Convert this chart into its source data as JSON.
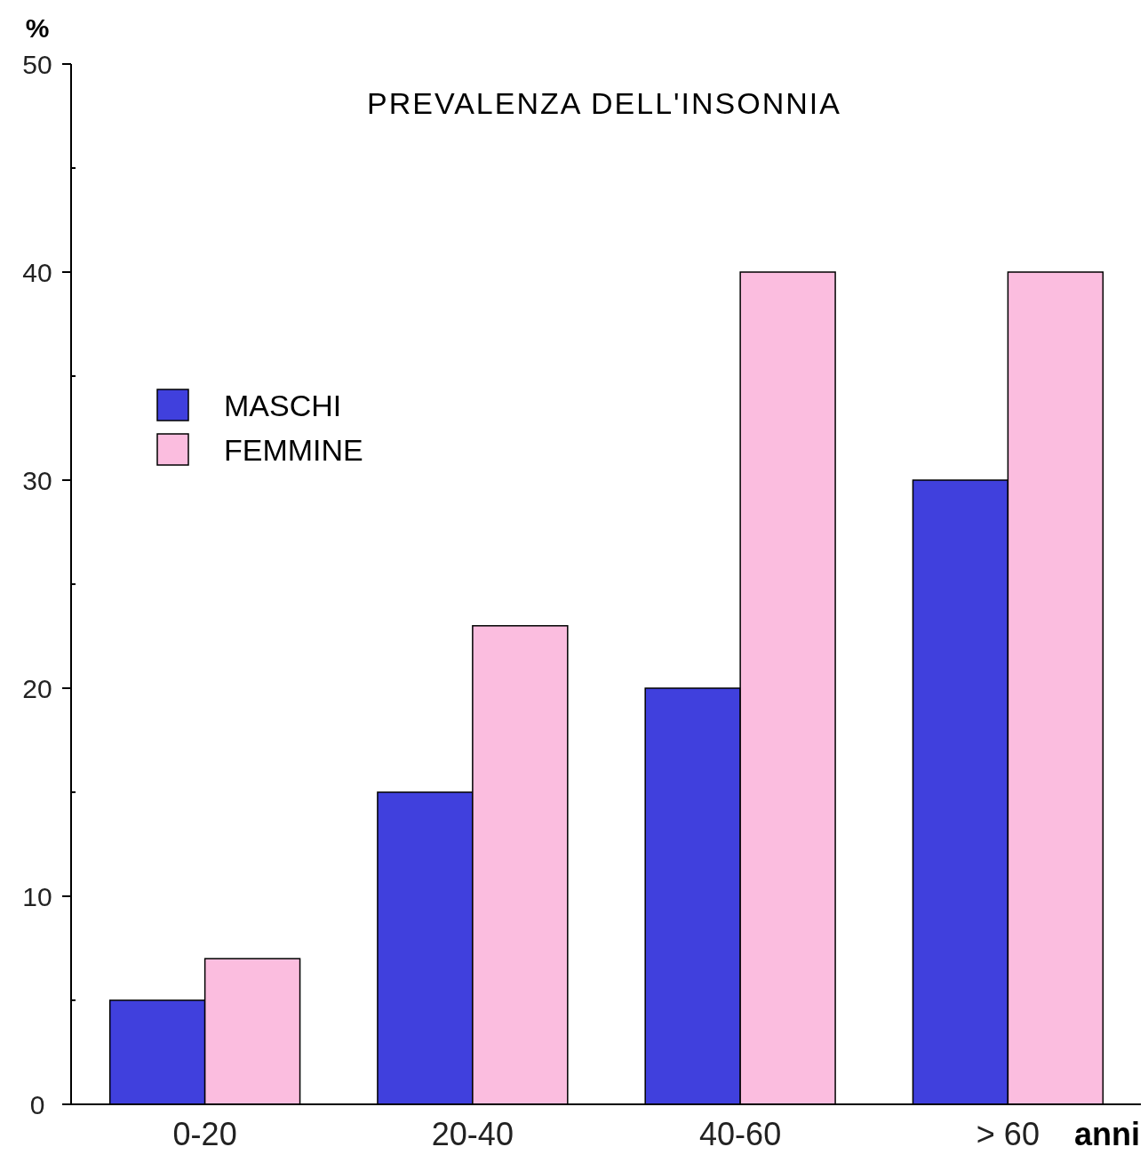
{
  "chart_data": {
    "type": "bar",
    "title": "PREVALENZA DELL'INSONNIA",
    "xlabel": "anni",
    "ylabel": "%",
    "categories": [
      "0-20",
      "20-40",
      "40-60",
      "> 60"
    ],
    "series": [
      {
        "name": "MASCHI",
        "color": "#4040dd",
        "values": [
          5,
          15,
          20,
          30
        ]
      },
      {
        "name": "FEMMINE",
        "color": "#fbbddf",
        "values": [
          7,
          23,
          40,
          40
        ]
      }
    ],
    "ylim": [
      0,
      50
    ],
    "yticks": [
      0,
      {
        "value": 5,
        "label": null
      },
      10,
      {
        "value": 15,
        "label": null
      },
      20,
      {
        "value": 25,
        "label": null
      },
      30,
      {
        "value": 35,
        "label": null
      },
      40,
      {
        "value": 45,
        "label": null
      },
      50
    ],
    "legend": "top left"
  }
}
